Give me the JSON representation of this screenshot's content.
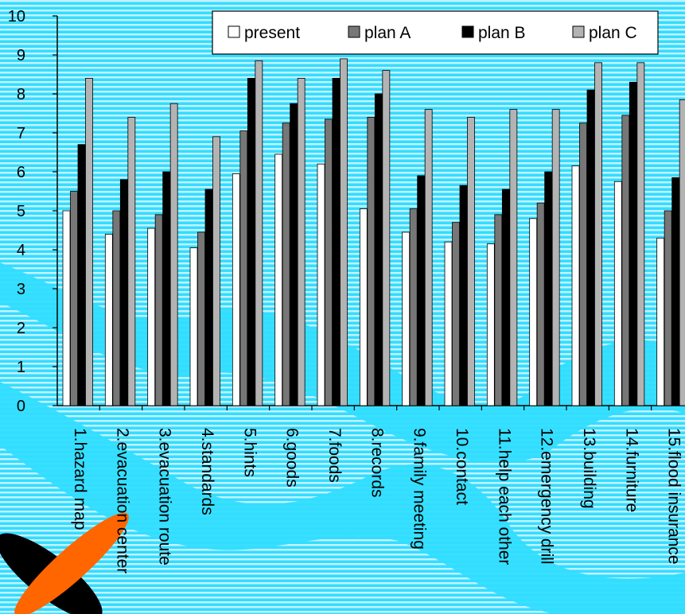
{
  "chart_data": {
    "type": "bar",
    "categories": [
      "1.hazard map",
      "2.evacuation center",
      "3.evacuation route",
      "4.standards",
      "5.hints",
      "6.goods",
      "7.foods",
      "8.records",
      "9.family meeting",
      "10.contact",
      "11.help each other",
      "12.emergency drill",
      "13.building",
      "14.furniture",
      "15.flood insurance"
    ],
    "series": [
      {
        "name": "present",
        "color": "#ffffff",
        "values": [
          5.0,
          4.4,
          4.55,
          4.05,
          5.95,
          6.45,
          6.2,
          5.05,
          4.45,
          4.2,
          4.15,
          4.8,
          6.15,
          5.75,
          4.3
        ]
      },
      {
        "name": "plan A",
        "color": "#777777",
        "values": [
          5.5,
          5.0,
          4.9,
          4.45,
          7.05,
          7.25,
          7.35,
          7.4,
          5.05,
          4.7,
          4.9,
          5.2,
          7.25,
          7.45,
          5.0
        ]
      },
      {
        "name": "plan B",
        "color": "#000000",
        "values": [
          6.7,
          5.8,
          6.0,
          5.55,
          8.4,
          7.75,
          8.4,
          8.0,
          5.9,
          5.65,
          5.55,
          6.0,
          8.1,
          8.3,
          5.85
        ]
      },
      {
        "name": "plan C",
        "color": "#b3b3b3",
        "values": [
          8.4,
          7.4,
          7.75,
          6.9,
          8.85,
          8.4,
          8.9,
          8.6,
          7.6,
          7.4,
          7.6,
          7.6,
          8.8,
          8.8,
          7.85
        ]
      }
    ],
    "ylim": [
      0,
      10
    ],
    "yticks": [
      "0",
      "1",
      "2",
      "3",
      "4",
      "5",
      "6",
      "7",
      "8",
      "9",
      "10"
    ],
    "legend_position": "top-right",
    "grid": false
  }
}
